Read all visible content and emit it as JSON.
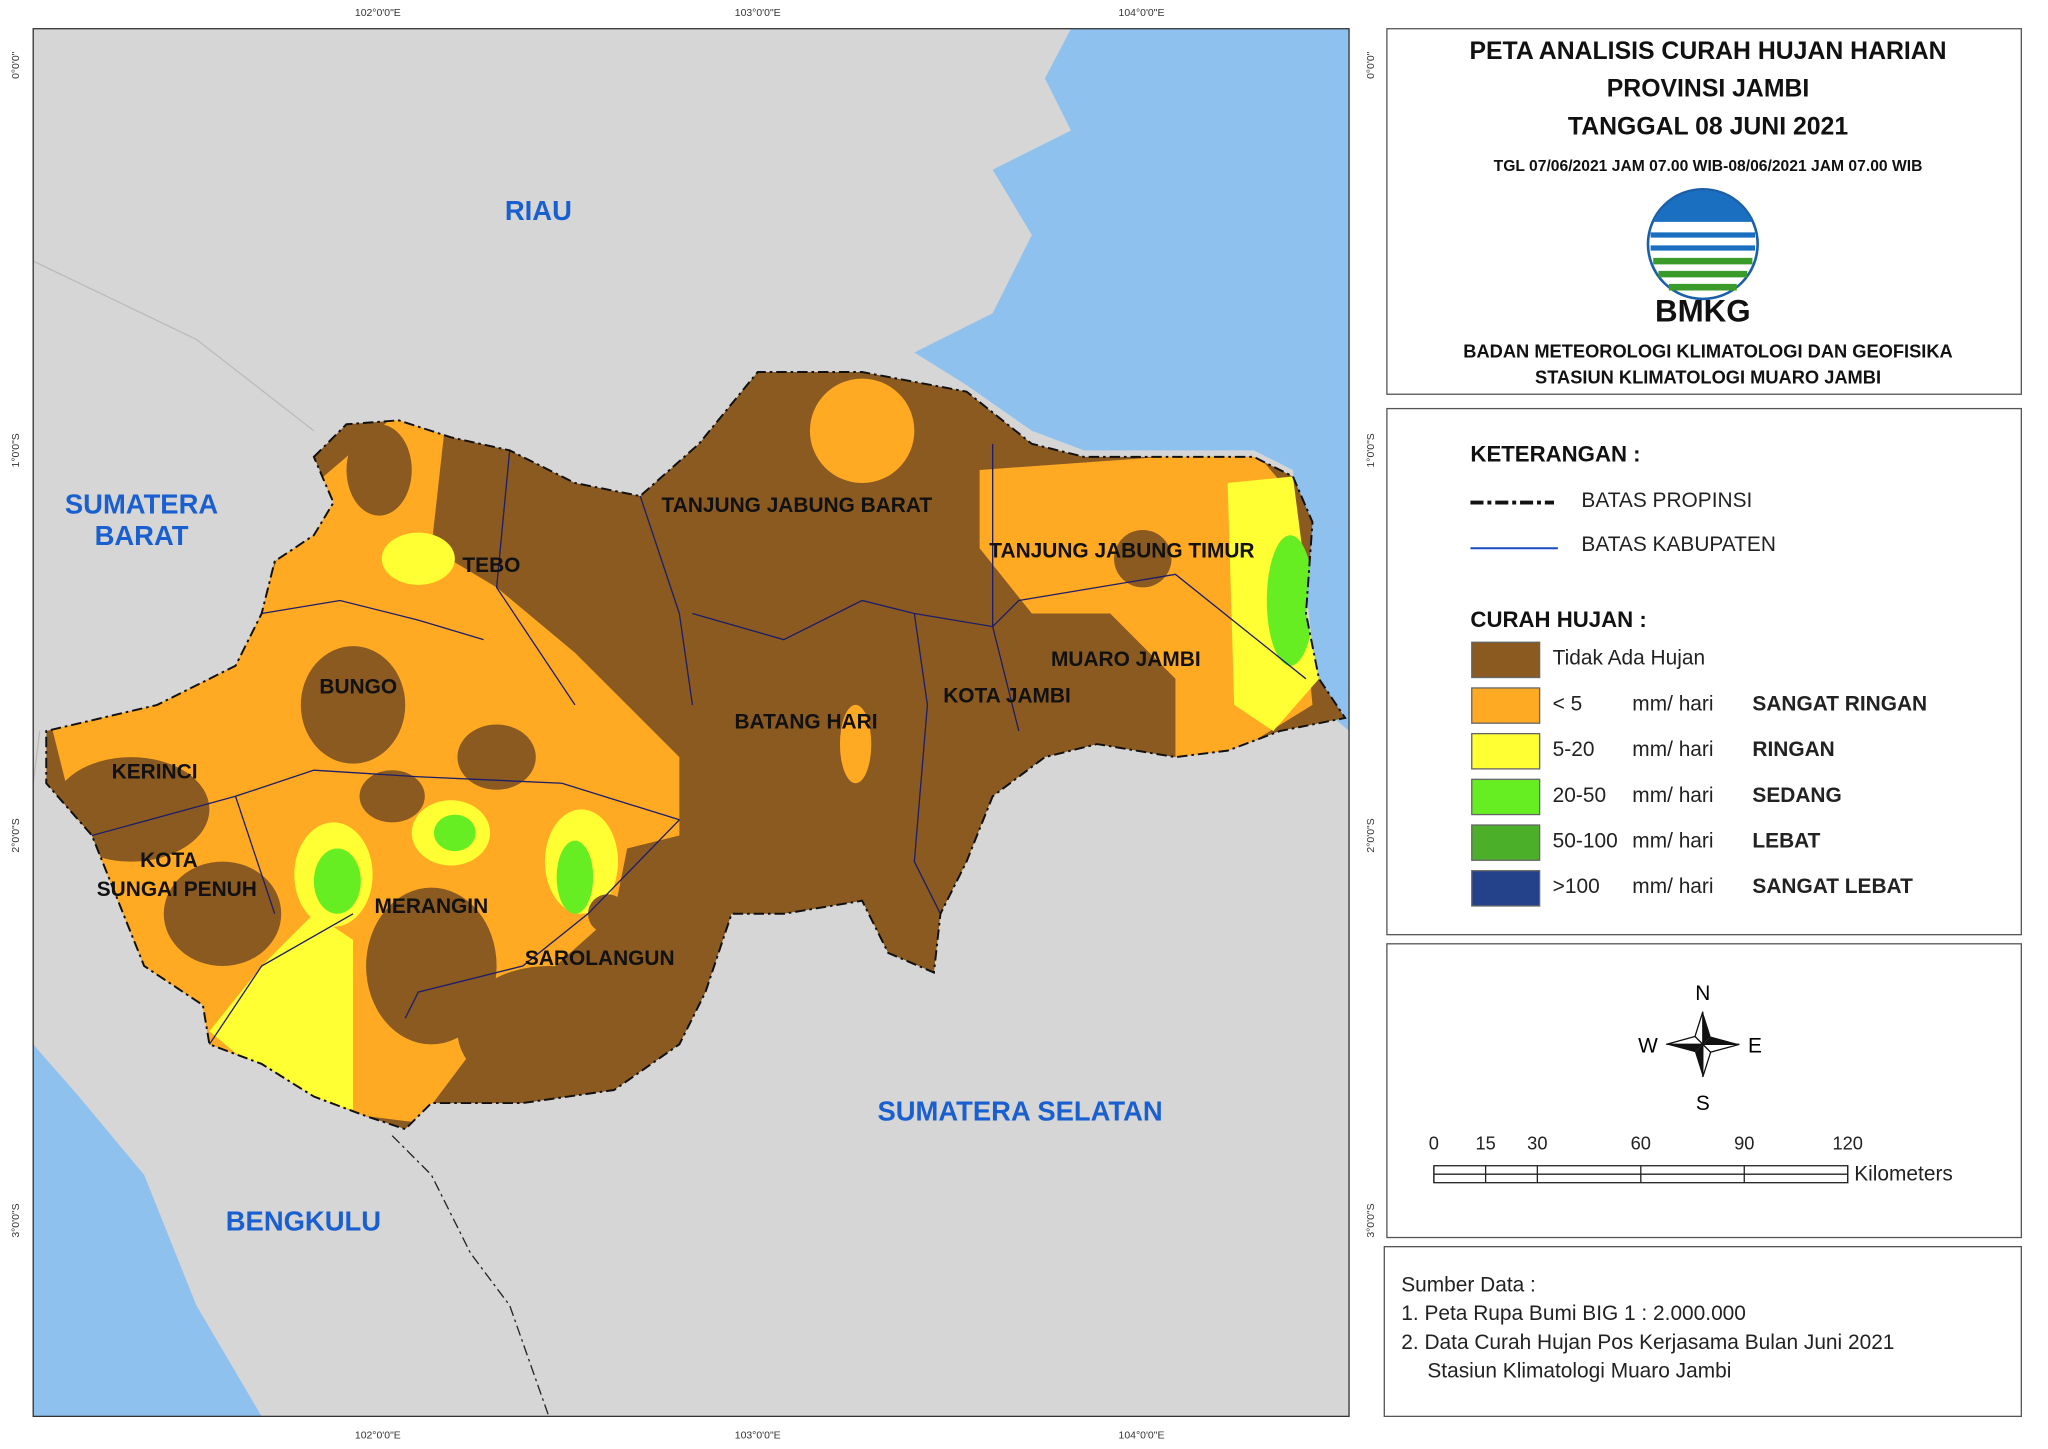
{
  "header": {
    "title_lines": [
      "PETA ANALISIS CURAH HUJAN HARIAN",
      "PROVINSI JAMBI",
      "TANGGAL 08 JUNI 2021"
    ],
    "period": "TGL 07/06/2021 JAM 07.00 WIB-08/06/2021 JAM 07.00 WIB",
    "logo_text": "BMKG",
    "agency_lines": [
      "BADAN METEOROLOGI KLIMATOLOGI DAN GEOFISIKA",
      "STASIUN KLIMATOLOGI MUARO JAMBI"
    ]
  },
  "map": {
    "coordinates": {
      "top": [
        "102°0'0\"E",
        "103°0'0\"E",
        "104°0'0\"E"
      ],
      "bottom": [
        "102°0'0\"E",
        "103°0'0\"E",
        "104°0'0\"E"
      ],
      "left": [
        "0°0'0\"",
        "1°0'0\"S",
        "2°0'0\"S",
        "3°0'0\"S"
      ],
      "right": [
        "0°0'0\"",
        "1°0'0\"S",
        "2°0'0\"S",
        "3°0'0\"S"
      ]
    },
    "provinces": [
      {
        "lines": [
          "RIAU"
        ]
      },
      {
        "lines": [
          "SUMATERA",
          "BARAT"
        ]
      },
      {
        "lines": [
          "SUMATERA SELATAN"
        ]
      },
      {
        "lines": [
          "BENGKULU"
        ]
      }
    ],
    "regencies": [
      {
        "lines": [
          "TEBO"
        ]
      },
      {
        "lines": [
          "BUNGO"
        ]
      },
      {
        "lines": [
          "KERINCI"
        ]
      },
      {
        "lines": [
          "KOTA",
          "SUNGAI PENUH"
        ]
      },
      {
        "lines": [
          "MERANGIN"
        ]
      },
      {
        "lines": [
          "SAROLANGUN"
        ]
      },
      {
        "lines": [
          "BATANG HARI"
        ]
      },
      {
        "lines": [
          "TANJUNG JABUNG BARAT"
        ]
      },
      {
        "lines": [
          "TANJUNG JABUNG TIMUR"
        ]
      },
      {
        "lines": [
          "MUARO JAMBI"
        ]
      },
      {
        "lines": [
          "KOTA JAMBI"
        ]
      }
    ]
  },
  "legend": {
    "title": "KETERANGAN :",
    "lines": [
      {
        "label": "BATAS PROPINSI"
      },
      {
        "label": "BATAS KABUPATEN"
      }
    ],
    "rain_title": "CURAH HUJAN :",
    "classes": [
      {
        "range": "Tidak Ada Hujan",
        "color": "#8a5a20"
      },
      {
        "range": "< 5",
        "unit": "mm/ hari",
        "category": "SANGAT RINGAN",
        "color": "#ffaa22"
      },
      {
        "range": "5-20",
        "unit": "mm/ hari",
        "category": "RINGAN",
        "color": "#ffff33"
      },
      {
        "range": "20-50",
        "unit": "mm/ hari",
        "category": "SEDANG",
        "color": "#66ee22"
      },
      {
        "range": "50-100",
        "unit": "mm/ hari",
        "category": "LEBAT",
        "color": "#4caf2a"
      },
      {
        "range": ">100",
        "unit": "mm/ hari",
        "category": "SANGAT LEBAT",
        "color": "#24428a"
      }
    ]
  },
  "compass": {
    "n": "N",
    "e": "E",
    "s": "S",
    "w": "W"
  },
  "scale_bar": {
    "ticks": [
      0,
      15,
      30,
      60,
      90,
      120
    ],
    "unit": "Kilometers"
  },
  "source": {
    "title": "Sumber Data :",
    "items": [
      "1. Peta Rupa Bumi BIG 1 : 2.000.000",
      "2. Data Curah Hujan Pos Kerjasama Bulan Juni 2021",
      "Stasiun Klimatologi Muaro Jambi"
    ]
  }
}
